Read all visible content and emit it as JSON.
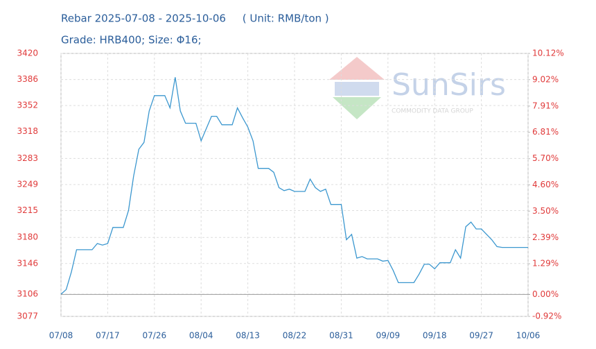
{
  "chart_data": {
    "type": "line",
    "title": "Rebar 2025-07-08 - 2025-10-06     ( Unit: RMB/ton )",
    "subtitle": "Grade: HRB400; Size: Φ16;",
    "watermark_text": "SunSirs",
    "watermark_tagline": "COMMODITY DATA GROUP",
    "categories": [
      "07/08",
      null,
      null,
      null,
      null,
      null,
      null,
      null,
      null,
      "07/17",
      null,
      null,
      null,
      null,
      null,
      null,
      null,
      null,
      "07/26",
      null,
      null,
      null,
      null,
      null,
      null,
      null,
      null,
      "08/04",
      null,
      null,
      null,
      null,
      null,
      null,
      null,
      null,
      "08/13",
      null,
      null,
      null,
      null,
      null,
      null,
      null,
      null,
      "08/22",
      null,
      null,
      null,
      null,
      null,
      null,
      null,
      null,
      "08/31",
      null,
      null,
      null,
      null,
      null,
      null,
      null,
      null,
      "09/09",
      null,
      null,
      null,
      null,
      null,
      null,
      null,
      null,
      "09/18",
      null,
      null,
      null,
      null,
      null,
      null,
      null,
      null,
      "09/27",
      null,
      null,
      null,
      null,
      null,
      null,
      null,
      null,
      "10/06"
    ],
    "values": [
      3106,
      3112,
      3135,
      3164,
      3164,
      3164,
      3164,
      3172,
      3170,
      3172,
      3193,
      3193,
      3193,
      3215,
      3260,
      3295,
      3304,
      3345,
      3365,
      3365,
      3365,
      3349,
      3389,
      3345,
      3329,
      3329,
      3329,
      3306,
      3322,
      3338,
      3338,
      3327,
      3327,
      3327,
      3349,
      3336,
      3324,
      3306,
      3270,
      3270,
      3270,
      3265,
      3245,
      3241,
      3243,
      3240,
      3240,
      3240,
      3256,
      3245,
      3240,
      3243,
      3223,
      3223,
      3223,
      3177,
      3184,
      3153,
      3155,
      3152,
      3152,
      3152,
      3149,
      3150,
      3137,
      3121,
      3121,
      3121,
      3121,
      3132,
      3145,
      3145,
      3139,
      3147,
      3147,
      3147,
      3164,
      3153,
      3194,
      3200,
      3191,
      3191,
      3184,
      3177,
      3168,
      3167,
      3167,
      3167,
      3167,
      3167,
      3167
    ],
    "color": "#3b97cf",
    "ylim": [
      3077,
      3420
    ],
    "yticks": [
      3077,
      3106,
      3146,
      3180,
      3215,
      3249,
      3283,
      3318,
      3352,
      3386,
      3420
    ],
    "y2lim": [
      -0.92,
      10.12
    ],
    "y2ticks": [
      {
        "value": -0.92,
        "label": "-0.92%"
      },
      {
        "value": 0,
        "label": "0.00%"
      },
      {
        "value": 1.29,
        "label": "1.29%"
      },
      {
        "value": 2.39,
        "label": "2.39%"
      },
      {
        "value": 3.5,
        "label": "3.50%"
      },
      {
        "value": 4.6,
        "label": "4.60%"
      },
      {
        "value": 5.7,
        "label": "5.70%"
      },
      {
        "value": 6.81,
        "label": "6.81%"
      },
      {
        "value": 7.91,
        "label": "7.91%"
      },
      {
        "value": 9.02,
        "label": "9.02%"
      },
      {
        "value": 10.12,
        "label": "10.12%"
      }
    ],
    "grid": true
  }
}
